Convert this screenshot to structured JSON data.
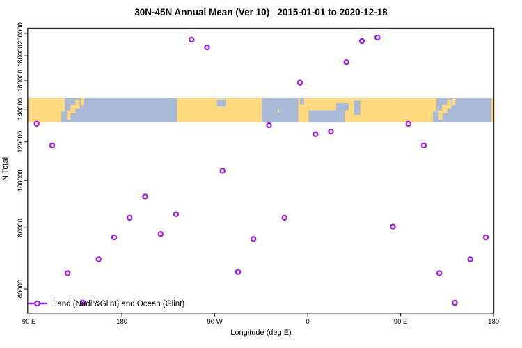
{
  "chart_data": {
    "type": "scatter",
    "title": "30N-45N Annual Mean (Ver 10)   2015-01-01 to 2020-12-18",
    "xlabel": "Longitude (deg E)",
    "ylabel": "N Total",
    "y_scale": "log",
    "x_range": [
      89.6,
      540.3
    ],
    "y_range": [
      53600,
      206400
    ],
    "grid": false,
    "legend_position": "bottom-left",
    "legend_label": "Land (Nadir&Glint) and Ocean (Glint)",
    "marker": {
      "shape": "open-circle",
      "color": "#A020F0"
    },
    "x_ticks": [
      {
        "value": 90,
        "label": "90 E"
      },
      {
        "value": 180,
        "label": "180"
      },
      {
        "value": 270,
        "label": "90 W"
      },
      {
        "value": 360,
        "label": "0"
      },
      {
        "value": 450,
        "label": "90 E"
      },
      {
        "value": 540,
        "label": "180"
      }
    ],
    "y_ticks": [
      {
        "value": 60000,
        "label": "60000"
      },
      {
        "value": 80000,
        "label": "80000"
      },
      {
        "value": 100000,
        "label": "100000"
      },
      {
        "value": 120000,
        "label": "120000"
      },
      {
        "value": 140000,
        "label": "140000"
      },
      {
        "value": 160000,
        "label": "160000"
      },
      {
        "value": 180000,
        "label": "180000"
      },
      {
        "value": 200000,
        "label": "200000"
      }
    ],
    "points": [
      {
        "lon": 97.5,
        "n": 130600
      },
      {
        "lon": 112.5,
        "n": 118000
      },
      {
        "lon": 127.5,
        "n": 64600
      },
      {
        "lon": 142.5,
        "n": 56200
      },
      {
        "lon": 157.5,
        "n": 69000
      },
      {
        "lon": 172.5,
        "n": 76500
      },
      {
        "lon": 187.5,
        "n": 83900
      },
      {
        "lon": 202.5,
        "n": 92700
      },
      {
        "lon": 217.5,
        "n": 77700
      },
      {
        "lon": 232.5,
        "n": 85300
      },
      {
        "lon": 247.5,
        "n": 194200
      },
      {
        "lon": 262.5,
        "n": 187300
      },
      {
        "lon": 277.5,
        "n": 104700
      },
      {
        "lon": 292.5,
        "n": 65000
      },
      {
        "lon": 307.5,
        "n": 75900
      },
      {
        "lon": 322.5,
        "n": 129700
      },
      {
        "lon": 337.5,
        "n": 83900
      },
      {
        "lon": 352.5,
        "n": 158600
      },
      {
        "lon": 367.5,
        "n": 124400
      },
      {
        "lon": 382.5,
        "n": 125900
      },
      {
        "lon": 397.5,
        "n": 174700
      },
      {
        "lon": 412.5,
        "n": 192900
      },
      {
        "lon": 427.5,
        "n": 196100
      },
      {
        "lon": 442.5,
        "n": 80500
      },
      {
        "lon": 457.5,
        "n": 130600
      },
      {
        "lon": 472.5,
        "n": 118000
      },
      {
        "lon": 487.5,
        "n": 64600
      },
      {
        "lon": 502.5,
        "n": 56200
      },
      {
        "lon": 517.5,
        "n": 69000
      },
      {
        "lon": 532.5,
        "n": 76500
      }
    ],
    "map_band": {
      "n_top": 147400,
      "n_bottom": 131400,
      "land_color": "#FED97E",
      "ocean_color": "#A9BAD9",
      "land_segments": [
        {
          "lon": [
            89.6,
            121.3
          ],
          "dup": false
        },
        {
          "lon": [
            233.5,
            315.5
          ],
          "dup": false
        },
        {
          "lon": [
            350.8,
            479.0
          ],
          "dup": false
        },
        {
          "lon": [
            537.8,
            540.3
          ],
          "dup": false
        }
      ],
      "features": [
        {
          "type": "land",
          "lon": [
            121.3,
            124.7
          ],
          "fy": [
            0.0,
            0.55
          ],
          "dup": true
        },
        {
          "type": "land",
          "lon": [
            126.8,
            130.4
          ],
          "fy": [
            0.5,
            0.88
          ],
          "dup": true
        },
        {
          "type": "land",
          "lon": [
            130.2,
            135.1
          ],
          "fy": [
            0.28,
            0.62
          ],
          "dup": true
        },
        {
          "type": "land",
          "lon": [
            135.0,
            139.2
          ],
          "fy": [
            0.06,
            0.42
          ],
          "dup": true
        },
        {
          "type": "land",
          "lon": [
            140.3,
            143.2
          ],
          "fy": [
            0.0,
            0.3
          ],
          "dup": true
        },
        {
          "type": "ocean",
          "lon": [
            272.0,
            281.0
          ],
          "fy": [
            0.05,
            0.35
          ],
          "dup": false
        },
        {
          "type": "land",
          "lon": [
            330.8,
            332.2
          ],
          "fy": [
            0.45,
            0.6
          ],
          "dup": false
        },
        {
          "type": "ocean",
          "lon": [
            352.5,
            356.5
          ],
          "fy": [
            0.0,
            0.28
          ],
          "dup": false
        },
        {
          "type": "ocean",
          "lon": [
            361.0,
            396.0
          ],
          "fy": [
            0.5,
            1.0
          ],
          "dup": false
        },
        {
          "type": "ocean",
          "lon": [
            387.5,
            399.5
          ],
          "fy": [
            0.2,
            0.5
          ],
          "dup": false
        },
        {
          "type": "ocean",
          "lon": [
            404.8,
            411.0
          ],
          "fy": [
            0.1,
            0.68
          ],
          "dup": false
        },
        {
          "type": "ocean",
          "lon": [
            466.5,
            473.0
          ],
          "fy": [
            0.1,
            0.4
          ],
          "dup": false
        }
      ]
    },
    "colors": {
      "marker": "#A020F0",
      "axis": "#2b2b2b",
      "text": "#000000",
      "background": "#ffffff"
    }
  }
}
